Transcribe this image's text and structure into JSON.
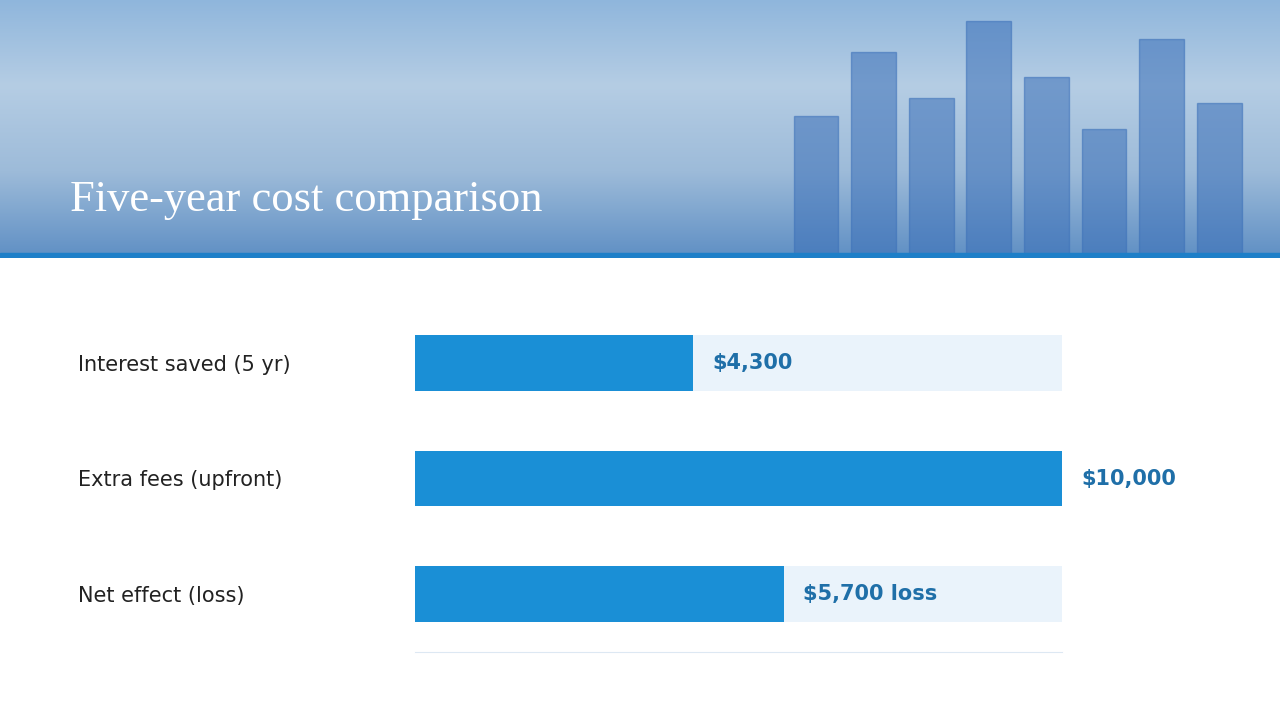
{
  "chart_data": {
    "type": "bar",
    "title": "Five-year cost comparison",
    "orientation": "horizontal",
    "categories": [
      "Interest saved (5 yr)",
      "Extra fees (upfront)",
      "Net effect (loss)"
    ],
    "values": [
      4300,
      10000,
      5700
    ],
    "value_labels": [
      "$4,300",
      "$10,000",
      "$5,700 loss"
    ],
    "color": "#1a8fd6",
    "xlim": [
      0,
      10000
    ],
    "xticks": [],
    "grid": false,
    "data_labels": true,
    "tick_labels": "y"
  }
}
